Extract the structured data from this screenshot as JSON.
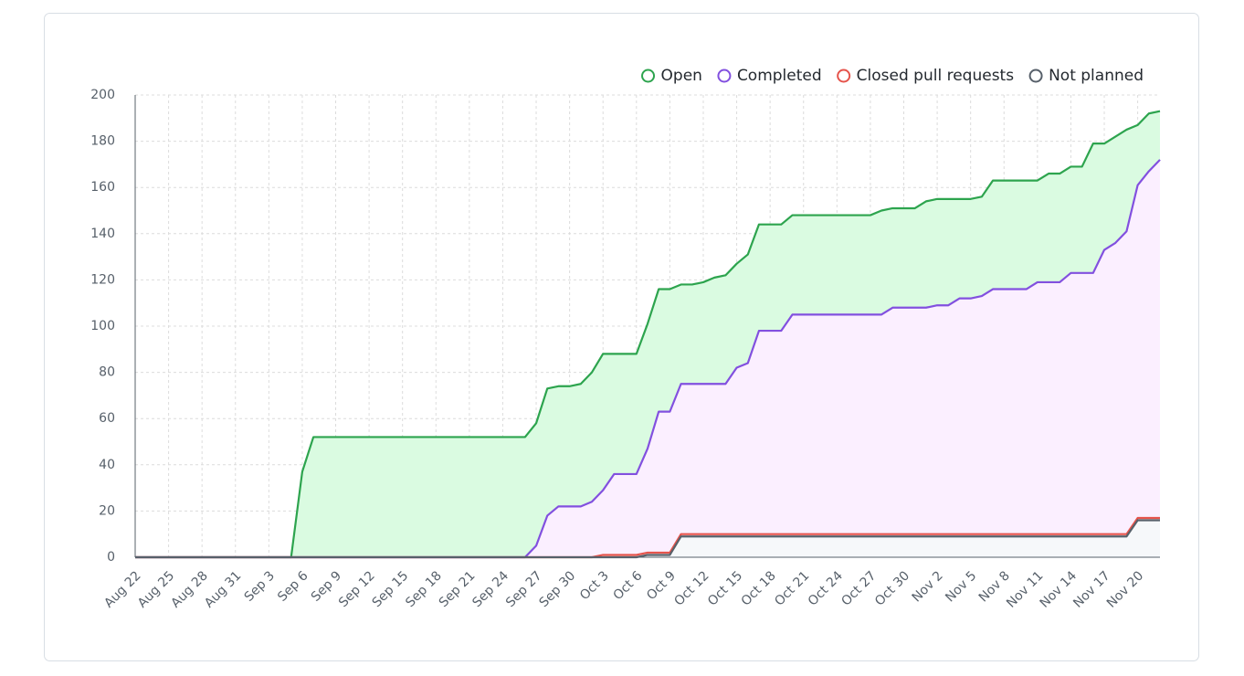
{
  "chart_data": {
    "type": "area",
    "categories": [
      "Aug 22",
      null,
      null,
      "Aug 25",
      null,
      null,
      "Aug 28",
      null,
      null,
      "Aug 31",
      null,
      null,
      "Sep 3",
      null,
      null,
      "Sep 6",
      null,
      null,
      "Sep 9",
      null,
      null,
      "Sep 12",
      null,
      null,
      "Sep 15",
      null,
      null,
      "Sep 18",
      null,
      null,
      "Sep 21",
      null,
      null,
      "Sep 24",
      null,
      null,
      "Sep 27",
      null,
      null,
      "Sep 30",
      null,
      null,
      "Oct 3",
      null,
      null,
      "Oct 6",
      null,
      null,
      "Oct 9",
      null,
      null,
      "Oct 12",
      null,
      null,
      "Oct 15",
      null,
      null,
      "Oct 18",
      null,
      null,
      "Oct 21",
      null,
      null,
      "Oct 24",
      null,
      null,
      "Oct 27",
      null,
      null,
      "Oct 30",
      null,
      null,
      "Nov 2",
      null,
      null,
      "Nov 5",
      null,
      null,
      "Nov 8",
      null,
      null,
      "Nov 11",
      null,
      null,
      "Nov 14",
      null,
      null,
      "Nov 17",
      null,
      null,
      "Nov 20",
      null,
      null
    ],
    "series": [
      {
        "name": "Open",
        "color": "#2da44e",
        "fill": "#dafbe1",
        "values": [
          0,
          0,
          0,
          0,
          0,
          0,
          0,
          0,
          0,
          0,
          0,
          0,
          0,
          0,
          0,
          37,
          52,
          52,
          52,
          52,
          52,
          52,
          52,
          52,
          52,
          52,
          52,
          52,
          52,
          52,
          52,
          52,
          52,
          52,
          52,
          52,
          58,
          73,
          74,
          74,
          75,
          80,
          88,
          88,
          88,
          88,
          101,
          116,
          116,
          118,
          118,
          119,
          121,
          122,
          127,
          131,
          144,
          144,
          144,
          148,
          148,
          148,
          148,
          148,
          148,
          148,
          148,
          150,
          151,
          151,
          151,
          154,
          155,
          155,
          155,
          155,
          156,
          163,
          163,
          163,
          163,
          163,
          166,
          166,
          169,
          169,
          179,
          179,
          182,
          185,
          187,
          192,
          193
        ]
      },
      {
        "name": "Completed",
        "color": "#8250df",
        "fill": "#fbefff",
        "values": [
          0,
          0,
          0,
          0,
          0,
          0,
          0,
          0,
          0,
          0,
          0,
          0,
          0,
          0,
          0,
          0,
          0,
          0,
          0,
          0,
          0,
          0,
          0,
          0,
          0,
          0,
          0,
          0,
          0,
          0,
          0,
          0,
          0,
          0,
          0,
          0,
          5,
          18,
          22,
          22,
          22,
          24,
          29,
          36,
          36,
          36,
          47,
          63,
          63,
          75,
          75,
          75,
          75,
          75,
          82,
          84,
          98,
          98,
          98,
          105,
          105,
          105,
          105,
          105,
          105,
          105,
          105,
          105,
          108,
          108,
          108,
          108,
          109,
          109,
          112,
          112,
          113,
          116,
          116,
          116,
          116,
          119,
          119,
          119,
          123,
          123,
          123,
          133,
          136,
          141,
          161,
          167,
          172
        ]
      },
      {
        "name": "Closed pull requests",
        "color": "#e5534b",
        "fill": "#ffebe9",
        "values": [
          0,
          0,
          0,
          0,
          0,
          0,
          0,
          0,
          0,
          0,
          0,
          0,
          0,
          0,
          0,
          0,
          0,
          0,
          0,
          0,
          0,
          0,
          0,
          0,
          0,
          0,
          0,
          0,
          0,
          0,
          0,
          0,
          0,
          0,
          0,
          0,
          0,
          0,
          0,
          0,
          0,
          0,
          1,
          1,
          1,
          1,
          2,
          2,
          2,
          10,
          10,
          10,
          10,
          10,
          10,
          10,
          10,
          10,
          10,
          10,
          10,
          10,
          10,
          10,
          10,
          10,
          10,
          10,
          10,
          10,
          10,
          10,
          10,
          10,
          10,
          10,
          10,
          10,
          10,
          10,
          10,
          10,
          10,
          10,
          10,
          10,
          10,
          10,
          10,
          10,
          17,
          17,
          17
        ]
      },
      {
        "name": "Not planned",
        "color": "#57606a",
        "fill": "#f6f8fa",
        "values": [
          0,
          0,
          0,
          0,
          0,
          0,
          0,
          0,
          0,
          0,
          0,
          0,
          0,
          0,
          0,
          0,
          0,
          0,
          0,
          0,
          0,
          0,
          0,
          0,
          0,
          0,
          0,
          0,
          0,
          0,
          0,
          0,
          0,
          0,
          0,
          0,
          0,
          0,
          0,
          0,
          0,
          0,
          0,
          0,
          0,
          0,
          1,
          1,
          1,
          9,
          9,
          9,
          9,
          9,
          9,
          9,
          9,
          9,
          9,
          9,
          9,
          9,
          9,
          9,
          9,
          9,
          9,
          9,
          9,
          9,
          9,
          9,
          9,
          9,
          9,
          9,
          9,
          9,
          9,
          9,
          9,
          9,
          9,
          9,
          9,
          9,
          9,
          9,
          9,
          9,
          16,
          16,
          16
        ]
      }
    ],
    "ylim": [
      0,
      200
    ],
    "yticks": [
      0,
      20,
      40,
      60,
      80,
      100,
      120,
      140,
      160,
      180,
      200
    ],
    "grid": true,
    "legend": "top-right"
  }
}
